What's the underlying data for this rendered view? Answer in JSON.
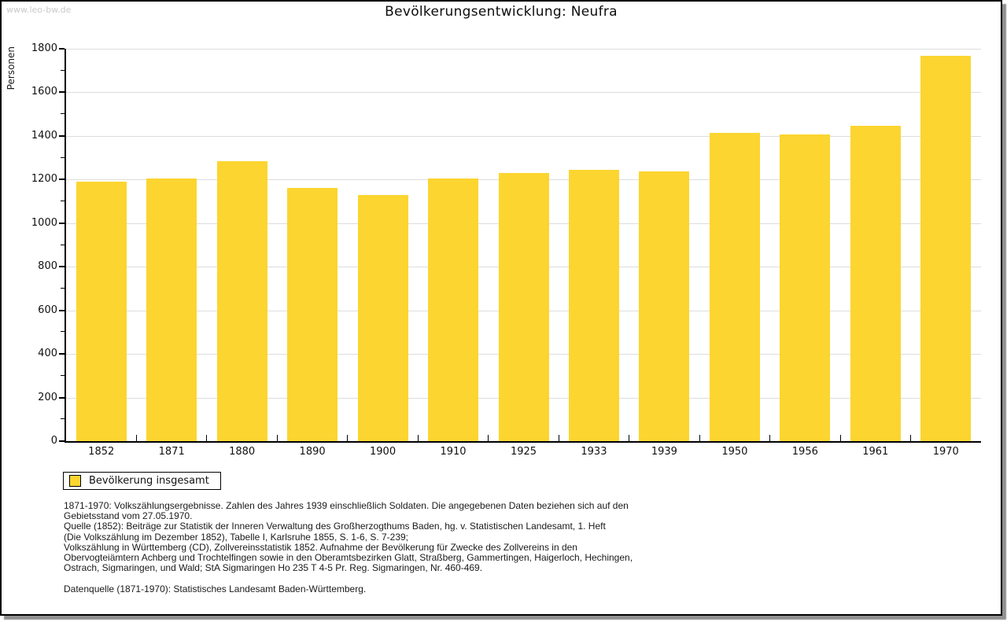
{
  "watermark": "www.leo-bw.de",
  "title": "Bevölkerungsentwicklung: Neufra",
  "chart_data": {
    "type": "bar",
    "title": "Bevölkerungsentwicklung: Neufra",
    "xlabel": "",
    "ylabel": "Personen",
    "categories": [
      "1852",
      "1871",
      "1880",
      "1890",
      "1900",
      "1910",
      "1925",
      "1933",
      "1939",
      "1950",
      "1956",
      "1961",
      "1970"
    ],
    "values": [
      1191,
      1204,
      1286,
      1160,
      1130,
      1204,
      1229,
      1245,
      1237,
      1413,
      1406,
      1445,
      1766
    ],
    "series_name": "Bevölkerung insgesamt",
    "ylim": [
      0,
      1800
    ],
    "yticks": [
      0,
      200,
      400,
      600,
      800,
      1000,
      1200,
      1400,
      1600,
      1800
    ],
    "minor_ytick_step": 100,
    "grid": "horizontal-major",
    "legend_position": "bottom-left",
    "bar_color": "#FCD530"
  },
  "legend": {
    "label": "Bevölkerung insgesamt",
    "swatch_color": "#FCD530"
  },
  "footnotes": {
    "lines": [
      "1871-1970: Volkszählungsergebnisse. Zahlen des Jahres 1939 einschließlich Soldaten. Die angegebenen Daten beziehen sich auf den",
      "Gebietsstand vom 27.05.1970.",
      "Quelle (1852): Beiträge zur Statistik der Inneren Verwaltung des Großherzogthums Baden, hg. v. Statistischen Landesamt, 1. Heft",
      "(Die Volkszählung im Dezember 1852), Tabelle I, Karlsruhe 1855, S. 1-6, S. 7-239;",
      "Volkszählung in Württemberg (CD), Zollvereinsstatistik 1852. Aufnahme der Bevölkerung für Zwecke des Zollvereins in den",
      "Obervogteiämtern Achberg und Trochtelfingen sowie in den Oberamtsbezirken Glatt, Straßberg, Gammertingen, Haigerloch, Hechingen,",
      "Ostrach, Sigmaringen, und Wald; StA Sigmaringen Ho 235 T 4-5 Pr. Reg. Sigmaringen, Nr. 460-469."
    ],
    "datasource": "Datenquelle (1871-1970): Statistisches Landesamt Baden-Württemberg."
  },
  "colors": {
    "bar": "#FCD530",
    "gridline": "#DDDDDD",
    "axis": "#000000",
    "watermark_text": "#C9C9C9",
    "frame_shadow": "#909090",
    "background": "#FFFFFF"
  }
}
